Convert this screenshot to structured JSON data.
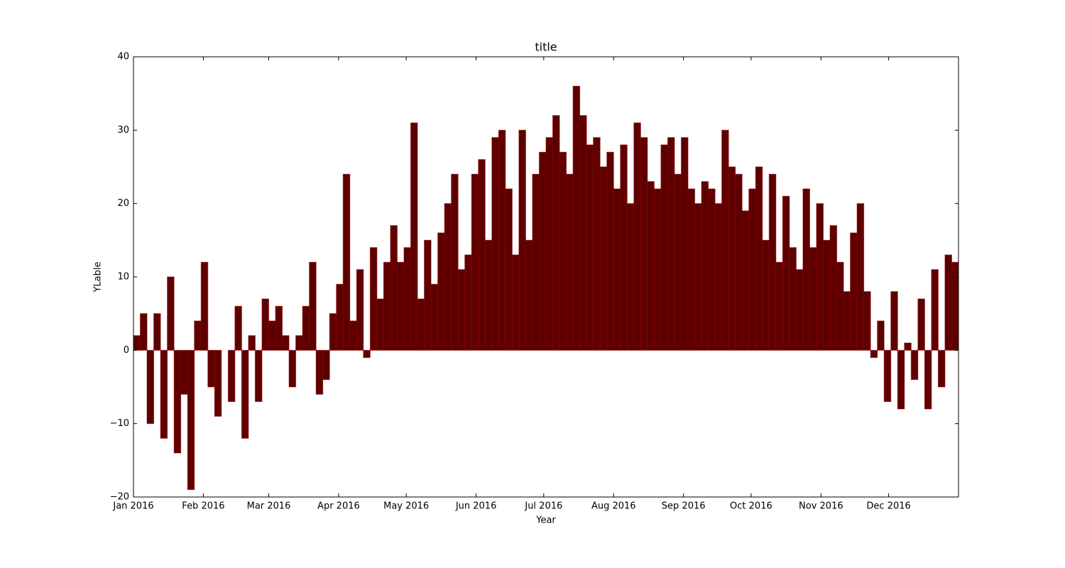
{
  "chart_data": {
    "type": "bar",
    "title": "title",
    "xlabel": "Year",
    "ylabel": "YLable",
    "color": "#5f0000",
    "edge_color": "#8b0000",
    "xlim": [
      0,
      366
    ],
    "xticks": [
      {
        "value": 0,
        "label": "Jan 2016"
      },
      {
        "value": 31,
        "label": "Feb 2016"
      },
      {
        "value": 60,
        "label": "Mar 2016"
      },
      {
        "value": 91,
        "label": "Apr 2016"
      },
      {
        "value": 121,
        "label": "May 2016"
      },
      {
        "value": 152,
        "label": "Jun 2016"
      },
      {
        "value": 182,
        "label": "Jul 2016"
      },
      {
        "value": 213,
        "label": "Aug 2016"
      },
      {
        "value": 244,
        "label": "Sep 2016"
      },
      {
        "value": 274,
        "label": "Oct 2016"
      },
      {
        "value": 305,
        "label": "Nov 2016"
      },
      {
        "value": 335,
        "label": "Dec 2016"
      }
    ],
    "ylim": [
      -20,
      40
    ],
    "yticks": [
      {
        "value": -20,
        "label": "−20"
      },
      {
        "value": -10,
        "label": "−10"
      },
      0,
      10,
      20,
      30,
      40
    ],
    "x": [
      0,
      3,
      6,
      9,
      12,
      15,
      18,
      21,
      24,
      27,
      30,
      33,
      36,
      39,
      42,
      45,
      48,
      51,
      54,
      57,
      60,
      63,
      66,
      69,
      72,
      75,
      78,
      81,
      84,
      87,
      90,
      93,
      96,
      99,
      102,
      105,
      108,
      111,
      114,
      117,
      120,
      123,
      126,
      129,
      132,
      135,
      138,
      141,
      144,
      147,
      150,
      153,
      156,
      159,
      162,
      165,
      168,
      171,
      174,
      177,
      180,
      183,
      186,
      189,
      192,
      195,
      198,
      201,
      204,
      207,
      210,
      213,
      216,
      219,
      222,
      225,
      228,
      231,
      234,
      237,
      240,
      243,
      246,
      249,
      252,
      255,
      258,
      261,
      264,
      267,
      270,
      273,
      276,
      279,
      282,
      285,
      288,
      291,
      294,
      297,
      300,
      303,
      306,
      309,
      312,
      315,
      318,
      321,
      324,
      327,
      330,
      333,
      336,
      339,
      342,
      345,
      348,
      351,
      354,
      357,
      360,
      363
    ],
    "values": [
      2,
      5,
      -10,
      5,
      -12,
      10,
      -14,
      -6,
      -19,
      4,
      12,
      -5,
      -9,
      0,
      -7,
      6,
      -12,
      2,
      -7,
      7,
      4,
      6,
      2,
      -5,
      2,
      6,
      12,
      -6,
      -4,
      5,
      9,
      24,
      4,
      11,
      -1,
      14,
      7,
      12,
      17,
      12,
      14,
      31,
      7,
      15,
      9,
      16,
      20,
      24,
      11,
      13,
      24,
      26,
      15,
      29,
      30,
      22,
      13,
      30,
      15,
      24,
      27,
      29,
      32,
      27,
      24,
      36,
      32,
      28,
      29,
      25,
      27,
      22,
      28,
      20,
      31,
      29,
      23,
      22,
      28,
      29,
      24,
      29,
      22,
      20,
      23,
      22,
      20,
      30,
      25,
      24,
      19,
      22,
      25,
      15,
      24,
      12,
      21,
      14,
      11,
      22,
      14,
      20,
      15,
      17,
      12,
      8,
      16,
      20,
      8,
      -1,
      4,
      -7,
      8,
      -8,
      1,
      -4,
      7,
      -8,
      11,
      -5,
      13,
      12
    ]
  }
}
